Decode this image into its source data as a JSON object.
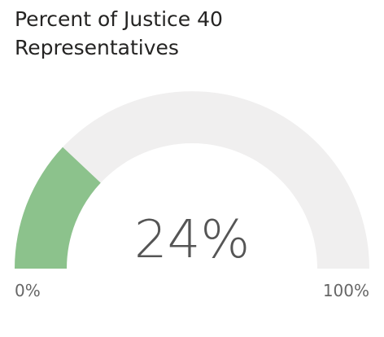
{
  "chart_data": {
    "type": "gauge",
    "title": "Percent of Justice 40 Representatives",
    "values": [
      24
    ],
    "value_labels": [
      "24%"
    ],
    "color": "#8cc28c",
    "track_color": "#f0efef",
    "ylim": [
      0,
      100
    ],
    "yticks": [
      {
        "value": 0,
        "label": "0%"
      },
      {
        "value": 100,
        "label": "100%"
      }
    ]
  }
}
